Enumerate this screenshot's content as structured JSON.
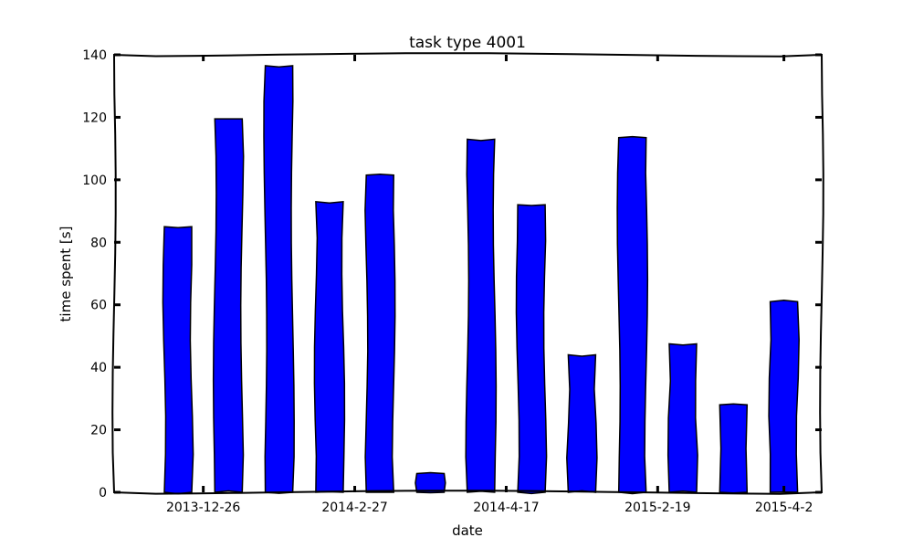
{
  "chart_data": {
    "type": "bar",
    "title": "task type 4001",
    "xlabel": "date",
    "ylabel": "time spent [s]",
    "ylim": [
      0,
      140
    ],
    "yticks": [
      "0",
      "20",
      "40",
      "60",
      "80",
      "100",
      "120",
      "140"
    ],
    "xtick_labels": [
      {
        "label": "2013-12-26",
        "index": 0.5
      },
      {
        "label": "2014-2-27",
        "index": 3.5
      },
      {
        "label": "2014-4-17",
        "index": 6.5
      },
      {
        "label": "2015-2-19",
        "index": 9.5
      },
      {
        "label": "2015-4-2",
        "index": 12.0
      }
    ],
    "values": [
      85,
      119.5,
      136.5,
      93,
      101.5,
      6,
      113,
      92,
      44,
      113.5,
      47.5,
      28,
      61
    ],
    "bar_color": "#0000ff",
    "edge_color": "#000000",
    "grid": false,
    "style": "xkcd"
  }
}
